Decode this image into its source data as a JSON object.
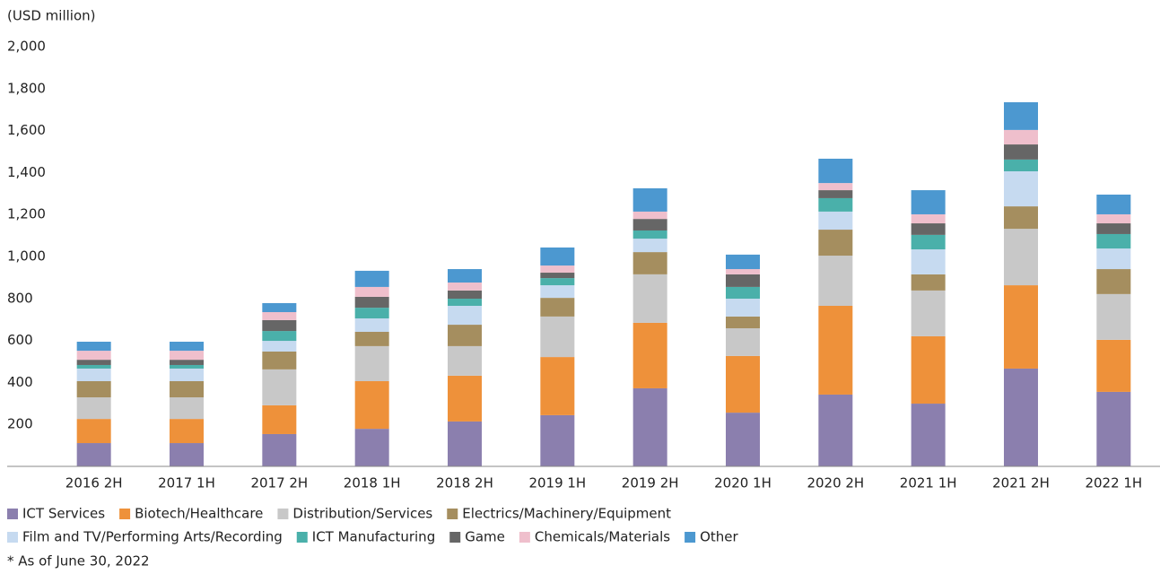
{
  "chart_data": {
    "type": "stacked_bar",
    "y_axis_label": "(USD million)",
    "footnote": "* As of June 30, 2022",
    "categories": [
      "2016 2H",
      "2017 1H",
      "2017 2H",
      "2018 1H",
      "2018 2H",
      "2019 1H",
      "2019 2H",
      "2020 1H",
      "2020 2H",
      "2021 1H",
      "2021 2H",
      "2022 1H"
    ],
    "ylim": [
      0,
      2000
    ],
    "yticks": [
      200,
      400,
      600,
      800,
      {
        "value": 1000,
        "label": "1,000"
      },
      {
        "value": 1200,
        "label": "1,200"
      },
      {
        "value": 1400,
        "label": "1,400"
      },
      {
        "value": 1600,
        "label": "1,600"
      },
      {
        "value": 1800,
        "label": "1,800"
      },
      {
        "value": 2000,
        "label": "2,000"
      }
    ],
    "grid": false,
    "legend": "bottom",
    "series": [
      {
        "name": "ICT Services",
        "color": "#8b7fae",
        "values": [
          111,
          111,
          154,
          179,
          214,
          244,
          372,
          256,
          342,
          299,
          466,
          355
        ]
      },
      {
        "name": "Biotech/Healthcare",
        "color": "#ee913a",
        "values": [
          115,
          115,
          137,
          227,
          218,
          277,
          312,
          270,
          423,
          321,
          397,
          248
        ]
      },
      {
        "name": "Distribution/Services",
        "color": "#c8c8c8",
        "values": [
          103,
          103,
          171,
          167,
          141,
          193,
          231,
          132,
          239,
          218,
          269,
          218
        ]
      },
      {
        "name": "Electrics/Machinery/Equipment",
        "color": "#a58e5f",
        "values": [
          77,
          77,
          85,
          68,
          102,
          89,
          106,
          56,
          124,
          77,
          107,
          119
        ]
      },
      {
        "name": "Film and TV/Performing Arts/Recording",
        "color": "#c6daf0",
        "values": [
          60,
          60,
          51,
          64,
          90,
          60,
          64,
          85,
          86,
          119,
          167,
          98
        ]
      },
      {
        "name": "ICT Manufacturing",
        "color": "#4ab0aa",
        "values": [
          17,
          17,
          47,
          51,
          34,
          34,
          39,
          56,
          64,
          69,
          56,
          69
        ]
      },
      {
        "name": "Game",
        "color": "#666666",
        "values": [
          25,
          25,
          52,
          52,
          39,
          26,
          55,
          60,
          38,
          55,
          72,
          51
        ]
      },
      {
        "name": "Chemicals/Materials",
        "color": "#efbfcc",
        "values": [
          43,
          43,
          38,
          47,
          38,
          34,
          35,
          25,
          34,
          43,
          69,
          43
        ]
      },
      {
        "name": "Other",
        "color": "#4c98d0",
        "values": [
          43,
          43,
          43,
          77,
          64,
          86,
          111,
          69,
          116,
          115,
          132,
          94
        ]
      }
    ]
  }
}
